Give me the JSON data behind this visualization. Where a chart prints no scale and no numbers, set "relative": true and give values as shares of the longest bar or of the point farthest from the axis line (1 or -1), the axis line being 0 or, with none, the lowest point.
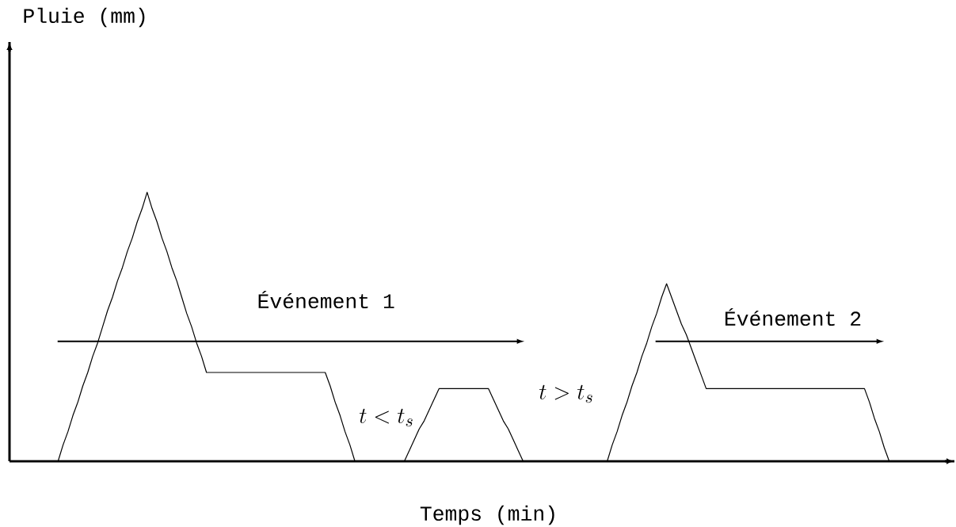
{
  "chart_data": {
    "type": "line",
    "relative": true,
    "xlabel": "Temps (min)",
    "color": "#000000",
    "annotations": [
      "Pluie (mm)",
      "Événement 1",
      "t < t_s",
      "t > t_s",
      "Événement 2"
    ],
    "categories": [
      null,
      null,
      null,
      null,
      null,
      null,
      null,
      null,
      null,
      null,
      null,
      null,
      null,
      null,
      null,
      null,
      null,
      null,
      null,
      null,
      null,
      null,
      null,
      null,
      null,
      null,
      null,
      null,
      null,
      null,
      null,
      null,
      null,
      null,
      null,
      null,
      null,
      null,
      null,
      null,
      null,
      null,
      null,
      null,
      null,
      null,
      null,
      null,
      null,
      null,
      null,
      null,
      null,
      null,
      null,
      null,
      null,
      null,
      null,
      null,
      null,
      null,
      null,
      null,
      null,
      null,
      null,
      null,
      null,
      null,
      null,
      null,
      null,
      null,
      null,
      null,
      null,
      null,
      null,
      null,
      null,
      null,
      null,
      null,
      null,
      null,
      null,
      null,
      null,
      null,
      null,
      null,
      null,
      null,
      null,
      null,
      null,
      null,
      null,
      null,
      null,
      null,
      null,
      null,
      null,
      null,
      null,
      null,
      null,
      null,
      null,
      null,
      null,
      null,
      null,
      null,
      null,
      null,
      null,
      null,
      null,
      null,
      null,
      null,
      null,
      null,
      null,
      null,
      null,
      null,
      null,
      null,
      null,
      null,
      null,
      null,
      null,
      null,
      null,
      null,
      null,
      null,
      null,
      null,
      null,
      null,
      null,
      null,
      null,
      null,
      null,
      null,
      null,
      null,
      null,
      null,
      null,
      null,
      null,
      null,
      null,
      null,
      null,
      null,
      null,
      null,
      null,
      null,
      null
    ],
    "values": [
      0,
      0.06,
      0.11,
      0.17,
      0.22,
      0.28,
      0.33,
      0.39,
      0.44,
      0.5,
      0.56,
      0.61,
      0.67,
      0.72,
      0.78,
      0.83,
      0.89,
      0.94,
      1,
      0.94,
      0.89,
      0.83,
      0.78,
      0.72,
      0.67,
      0.61,
      0.55,
      0.5,
      0.44,
      0.39,
      0.33,
      0.33,
      0.33,
      0.33,
      0.33,
      0.33,
      0.33,
      0.33,
      0.33,
      0.33,
      0.33,
      0.33,
      0.33,
      0.33,
      0.33,
      0.33,
      0.33,
      0.33,
      0.33,
      0.33,
      0.33,
      0.33,
      0.33,
      0.33,
      0.33,
      0.28,
      0.22,
      0.17,
      0.11,
      0.06,
      0,
      0,
      0,
      0,
      0,
      0,
      0,
      0,
      0,
      0,
      0,
      0.04,
      0.08,
      0.12,
      0.15,
      0.19,
      0.23,
      0.27,
      0.27,
      0.27,
      0.27,
      0.27,
      0.27,
      0.27,
      0.27,
      0.27,
      0.27,
      0.27,
      0.23,
      0.19,
      0.15,
      0.12,
      0.08,
      0.04,
      0,
      0,
      0,
      0,
      0,
      0,
      0,
      0,
      0,
      0,
      0,
      0,
      0,
      0,
      0,
      0,
      0,
      0,
      0.06,
      0.11,
      0.17,
      0.22,
      0.28,
      0.33,
      0.39,
      0.44,
      0.5,
      0.55,
      0.61,
      0.66,
      0.61,
      0.56,
      0.51,
      0.47,
      0.42,
      0.37,
      0.32,
      0.27,
      0.27,
      0.27,
      0.27,
      0.27,
      0.27,
      0.27,
      0.27,
      0.27,
      0.27,
      0.27,
      0.27,
      0.27,
      0.27,
      0.27,
      0.27,
      0.27,
      0.27,
      0.27,
      0.27,
      0.27,
      0.27,
      0.27,
      0.27,
      0.27,
      0.27,
      0.27,
      0.27,
      0.27,
      0.27,
      0.27,
      0.27,
      0.27,
      0.22,
      0.16,
      0.11,
      0.05,
      0
    ]
  }
}
